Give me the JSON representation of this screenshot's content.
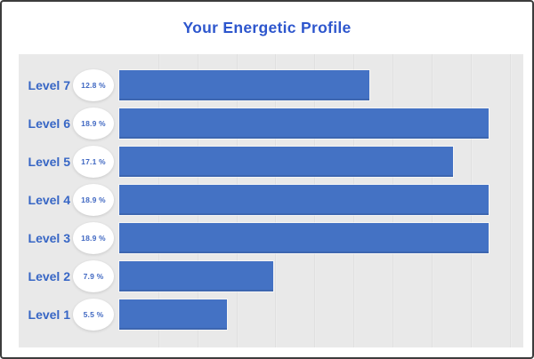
{
  "colors": {
    "title_text": "#2d56cd",
    "bar_fill": "#4472c4",
    "label_text": "#3766c5",
    "badge_text": "#4068c2",
    "badge_bg": "#ffffff",
    "plot_bg": "#e9e9e9",
    "gridline": "#dadada",
    "frame_border": "#3c3c3c"
  },
  "chart_data": {
    "type": "bar",
    "orientation": "horizontal",
    "title": "Your Energetic Profile",
    "categories": [
      "Level 7",
      "Level 6",
      "Level 5",
      "Level 4",
      "Level 3",
      "Level 2",
      "Level 1"
    ],
    "values": [
      12.8,
      18.9,
      17.1,
      18.9,
      18.9,
      7.9,
      5.5
    ],
    "value_labels": [
      "12.8 %",
      "18.9 %",
      "17.1 %",
      "18.9 %",
      "18.9 %",
      "7.9 %",
      "5.5 %"
    ],
    "xlabel": "",
    "ylabel": "",
    "xlim": [
      0,
      20.7
    ],
    "gridline_step": 2,
    "grid": "vertical",
    "legend": "none",
    "bar_labels_position": "left-badge"
  }
}
